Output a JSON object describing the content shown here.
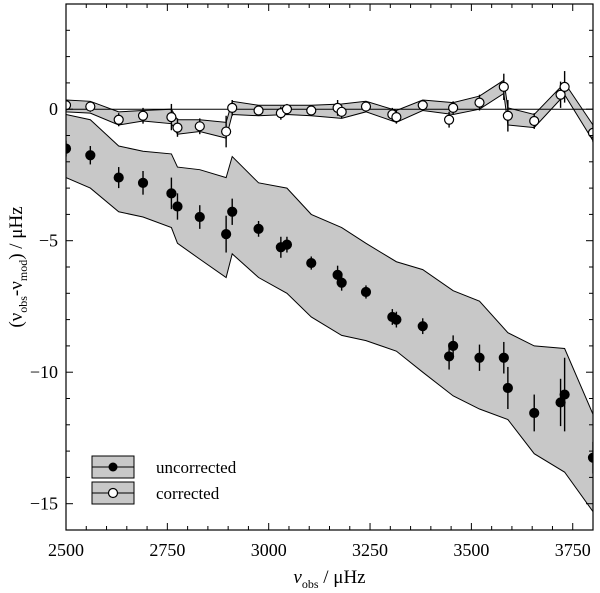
{
  "chart_data": {
    "type": "scatter",
    "xlabel": {
      "prefix": "ν",
      "sub": "obs",
      "suffix": " / μHz"
    },
    "ylabel": {
      "open": "(ν",
      "sub1": "obs",
      "mid": "-ν",
      "sub2": "mod",
      "close": ") / μHz"
    },
    "xlim": [
      2500,
      3800
    ],
    "ylim": [
      -16,
      4
    ],
    "xticks": [
      2500,
      2750,
      3000,
      3250,
      3500,
      3750
    ],
    "xtick_labels": [
      "2500",
      "2750",
      "3000",
      "3250",
      "3500",
      "3750"
    ],
    "yticks": [
      0,
      -5,
      -10,
      -15
    ],
    "ytick_labels": [
      "0",
      "−5",
      "−10",
      "−15"
    ],
    "zero_line": 0,
    "legend": {
      "location": "lower-left",
      "entries": [
        "uncorrected",
        "corrected"
      ]
    },
    "series": [
      {
        "name": "uncorrected",
        "marker": "filled-circle",
        "points": [
          {
            "x": 2500,
            "y": -1.5,
            "err": 0.3
          },
          {
            "x": 2560,
            "y": -1.75,
            "err": 0.35
          },
          {
            "x": 2630,
            "y": -2.6,
            "err": 0.4
          },
          {
            "x": 2690,
            "y": -2.8,
            "err": 0.45
          },
          {
            "x": 2760,
            "y": -3.2,
            "err": 0.6
          },
          {
            "x": 2775,
            "y": -3.7,
            "err": 0.5
          },
          {
            "x": 2830,
            "y": -4.1,
            "err": 0.45
          },
          {
            "x": 2895,
            "y": -4.75,
            "err": 0.7
          },
          {
            "x": 2910,
            "y": -3.9,
            "err": 0.5
          },
          {
            "x": 2975,
            "y": -4.55,
            "err": 0.3
          },
          {
            "x": 3030,
            "y": -5.25,
            "err": 0.4
          },
          {
            "x": 3045,
            "y": -5.15,
            "err": 0.3
          },
          {
            "x": 3105,
            "y": -5.85,
            "err": 0.25
          },
          {
            "x": 3170,
            "y": -6.3,
            "err": 0.35
          },
          {
            "x": 3180,
            "y": -6.6,
            "err": 0.3
          },
          {
            "x": 3240,
            "y": -6.95,
            "err": 0.25
          },
          {
            "x": 3305,
            "y": -7.9,
            "err": 0.3
          },
          {
            "x": 3315,
            "y": -8.0,
            "err": 0.3
          },
          {
            "x": 3380,
            "y": -8.25,
            "err": 0.3
          },
          {
            "x": 3445,
            "y": -9.4,
            "err": 0.5
          },
          {
            "x": 3455,
            "y": -9.0,
            "err": 0.4
          },
          {
            "x": 3520,
            "y": -9.45,
            "err": 0.5
          },
          {
            "x": 3580,
            "y": -9.45,
            "err": 0.6
          },
          {
            "x": 3590,
            "y": -10.6,
            "err": 0.8
          },
          {
            "x": 3655,
            "y": -11.55,
            "err": 0.7
          },
          {
            "x": 3720,
            "y": -11.15,
            "err": 0.9
          },
          {
            "x": 3730,
            "y": -10.85,
            "err": 1.4
          },
          {
            "x": 3800,
            "y": -13.25,
            "err": 0.6
          }
        ],
        "band_upper": [
          [
            2500,
            -0.2
          ],
          [
            2560,
            -0.4
          ],
          [
            2630,
            -1.4
          ],
          [
            2690,
            -1.6
          ],
          [
            2760,
            -1.7
          ],
          [
            2775,
            -2.2
          ],
          [
            2830,
            -2.3
          ],
          [
            2895,
            -2.6
          ],
          [
            2910,
            -1.8
          ],
          [
            2975,
            -2.8
          ],
          [
            3045,
            -3.0
          ],
          [
            3105,
            -4.0
          ],
          [
            3180,
            -4.5
          ],
          [
            3240,
            -5.1
          ],
          [
            3315,
            -5.8
          ],
          [
            3380,
            -6.1
          ],
          [
            3455,
            -6.9
          ],
          [
            3520,
            -7.3
          ],
          [
            3590,
            -8.5
          ],
          [
            3655,
            -9.0
          ],
          [
            3730,
            -9.1
          ],
          [
            3800,
            -11.6
          ]
        ],
        "band_lower": [
          [
            2500,
            -2.6
          ],
          [
            2560,
            -3.0
          ],
          [
            2630,
            -3.9
          ],
          [
            2690,
            -4.1
          ],
          [
            2760,
            -4.5
          ],
          [
            2775,
            -5.1
          ],
          [
            2830,
            -5.7
          ],
          [
            2895,
            -6.4
          ],
          [
            2910,
            -5.5
          ],
          [
            2975,
            -6.4
          ],
          [
            3045,
            -7.0
          ],
          [
            3105,
            -7.9
          ],
          [
            3180,
            -8.6
          ],
          [
            3240,
            -8.8
          ],
          [
            3315,
            -9.2
          ],
          [
            3380,
            -10.0
          ],
          [
            3455,
            -10.9
          ],
          [
            3520,
            -11.4
          ],
          [
            3590,
            -11.8
          ],
          [
            3655,
            -13.1
          ],
          [
            3730,
            -13.8
          ],
          [
            3800,
            -15.3
          ]
        ]
      },
      {
        "name": "corrected",
        "marker": "open-circle",
        "points": [
          {
            "x": 2500,
            "y": 0.15,
            "err": 0.2
          },
          {
            "x": 2560,
            "y": 0.1,
            "err": 0.2
          },
          {
            "x": 2630,
            "y": -0.4,
            "err": 0.25
          },
          {
            "x": 2690,
            "y": -0.25,
            "err": 0.3
          },
          {
            "x": 2760,
            "y": -0.3,
            "err": 0.5
          },
          {
            "x": 2775,
            "y": -0.7,
            "err": 0.35
          },
          {
            "x": 2830,
            "y": -0.65,
            "err": 0.3
          },
          {
            "x": 2895,
            "y": -0.85,
            "err": 0.6
          },
          {
            "x": 2910,
            "y": 0.05,
            "err": 0.3
          },
          {
            "x": 2975,
            "y": -0.05,
            "err": 0.2
          },
          {
            "x": 3030,
            "y": -0.15,
            "err": 0.25
          },
          {
            "x": 3045,
            "y": 0.0,
            "err": 0.2
          },
          {
            "x": 3105,
            "y": -0.05,
            "err": 0.2
          },
          {
            "x": 3170,
            "y": 0.05,
            "err": 0.3
          },
          {
            "x": 3180,
            "y": -0.1,
            "err": 0.25
          },
          {
            "x": 3240,
            "y": 0.1,
            "err": 0.2
          },
          {
            "x": 3305,
            "y": -0.2,
            "err": 0.25
          },
          {
            "x": 3315,
            "y": -0.3,
            "err": 0.25
          },
          {
            "x": 3380,
            "y": 0.15,
            "err": 0.2
          },
          {
            "x": 3445,
            "y": -0.4,
            "err": 0.3
          },
          {
            "x": 3455,
            "y": 0.05,
            "err": 0.25
          },
          {
            "x": 3520,
            "y": 0.25,
            "err": 0.3
          },
          {
            "x": 3580,
            "y": 0.85,
            "err": 0.5
          },
          {
            "x": 3590,
            "y": -0.25,
            "err": 0.6
          },
          {
            "x": 3655,
            "y": -0.45,
            "err": 0.3
          },
          {
            "x": 3720,
            "y": 0.55,
            "err": 0.5
          },
          {
            "x": 3730,
            "y": 0.85,
            "err": 0.6
          },
          {
            "x": 3800,
            "y": -0.9,
            "err": 0.35
          }
        ],
        "band_upper": [
          [
            2500,
            0.35
          ],
          [
            2560,
            0.3
          ],
          [
            2630,
            -0.1
          ],
          [
            2690,
            -0.05
          ],
          [
            2760,
            0.0
          ],
          [
            2775,
            -0.4
          ],
          [
            2830,
            -0.4
          ],
          [
            2895,
            -0.5
          ],
          [
            2910,
            0.3
          ],
          [
            2975,
            0.15
          ],
          [
            3045,
            0.15
          ],
          [
            3105,
            0.15
          ],
          [
            3180,
            0.2
          ],
          [
            3240,
            0.3
          ],
          [
            3315,
            -0.05
          ],
          [
            3380,
            0.35
          ],
          [
            3455,
            0.25
          ],
          [
            3520,
            0.5
          ],
          [
            3580,
            1.1
          ],
          [
            3590,
            0.05
          ],
          [
            3655,
            -0.2
          ],
          [
            3730,
            1.0
          ],
          [
            3800,
            -0.6
          ]
        ],
        "band_lower": [
          [
            2500,
            -0.1
          ],
          [
            2560,
            -0.15
          ],
          [
            2630,
            -0.6
          ],
          [
            2690,
            -0.45
          ],
          [
            2760,
            -0.55
          ],
          [
            2775,
            -0.95
          ],
          [
            2830,
            -0.85
          ],
          [
            2895,
            -1.1
          ],
          [
            2910,
            -0.2
          ],
          [
            2975,
            -0.25
          ],
          [
            3045,
            -0.2
          ],
          [
            3105,
            -0.25
          ],
          [
            3180,
            -0.35
          ],
          [
            3240,
            -0.1
          ],
          [
            3315,
            -0.5
          ],
          [
            3380,
            -0.05
          ],
          [
            3455,
            -0.2
          ],
          [
            3520,
            0.0
          ],
          [
            3580,
            0.6
          ],
          [
            3590,
            -0.6
          ],
          [
            3655,
            -0.7
          ],
          [
            3730,
            0.55
          ],
          [
            3800,
            -1.2
          ]
        ]
      }
    ]
  }
}
